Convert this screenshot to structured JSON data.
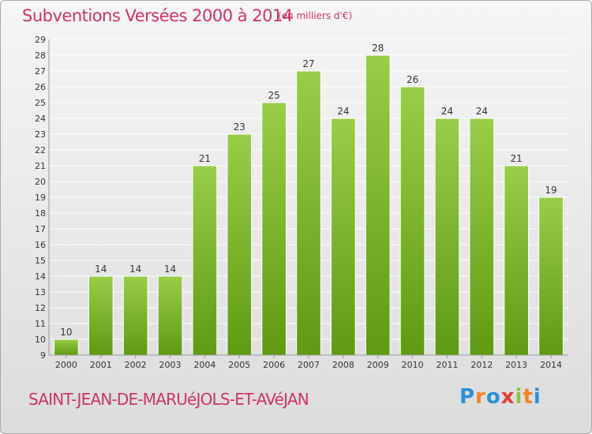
{
  "header": {
    "title": "Subventions Versées 2000 à 2014",
    "unit": "(en milliers d'€)"
  },
  "footer": {
    "commune": "SAINT-JEAN-DE-MARUéJOLS-ET-AVéJAN",
    "logo": [
      "P",
      "r",
      "o",
      "x",
      "i",
      "t",
      "i"
    ],
    "logo_colors": [
      "#2b8fd6",
      "#f58220",
      "#2b8fd6",
      "#e53935",
      "#8bc34a",
      "#f58220",
      "#2b8fd6"
    ]
  },
  "colors": {
    "bar_top": "#9acd48",
    "bar_bottom": "#5f9a12",
    "grid": "#ffffff",
    "axis_text": "#333333",
    "accent": "#cc3366"
  },
  "chart_data": {
    "type": "bar",
    "categories": [
      "2000",
      "2001",
      "2002",
      "2003",
      "2004",
      "2005",
      "2006",
      "2007",
      "2008",
      "2009",
      "2010",
      "2011",
      "2012",
      "2013",
      "2014"
    ],
    "values": [
      10,
      14,
      14,
      14,
      21,
      23,
      25,
      27,
      24,
      28,
      26,
      24,
      24,
      21,
      19
    ],
    "ylim": [
      9,
      29
    ],
    "yticks": [
      9,
      10,
      11,
      12,
      13,
      14,
      15,
      16,
      17,
      18,
      19,
      20,
      21,
      22,
      23,
      24,
      25,
      26,
      27,
      28,
      29
    ],
    "grid": true,
    "data_labels": true
  }
}
